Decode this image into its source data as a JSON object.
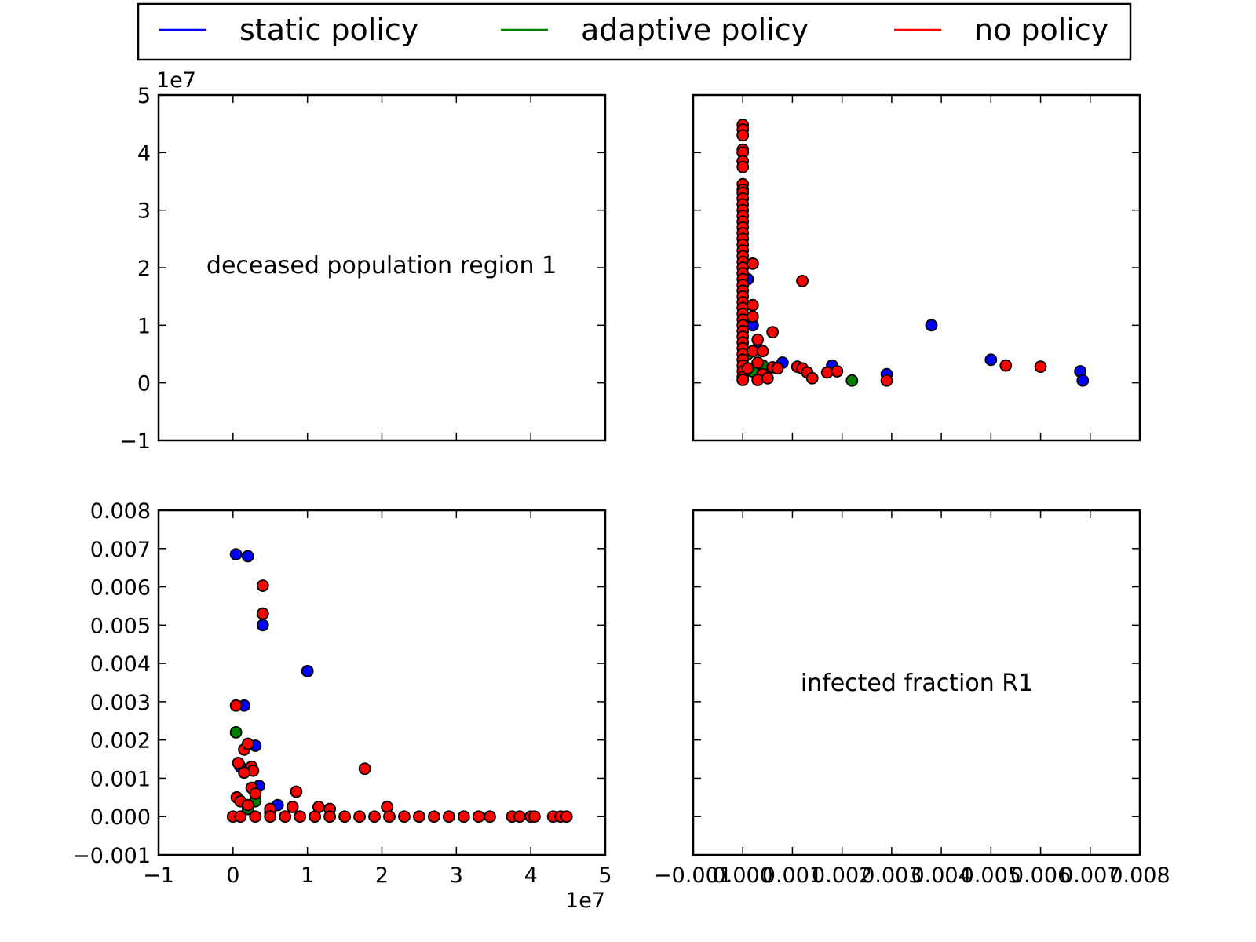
{
  "legend": {
    "placement": "top-center",
    "entries": [
      {
        "label": "static policy",
        "color": "#0000ff"
      },
      {
        "label": "adaptive policy",
        "color": "#008000"
      },
      {
        "label": "no policy",
        "color": "#ff0000"
      }
    ]
  },
  "chart_data": [
    {
      "panel": "top-left",
      "type": "scatter",
      "diagonal_label": "deceased population region 1",
      "ylim": [
        -1,
        5
      ],
      "yticks": [
        "−1",
        "0",
        "1",
        "2",
        "3",
        "4",
        "5"
      ],
      "y_offset_label": "1e7"
    },
    {
      "panel": "top-right",
      "type": "scatter",
      "xlabel_variable": "infected fraction R1",
      "ylabel_variable": "deceased population region 1",
      "xlim": [
        -0.001,
        0.008
      ],
      "ylim": [
        -1,
        5
      ],
      "y_scale": 10000000,
      "series": [
        {
          "name": "static policy",
          "color": "#0000ff",
          "points": [
            [
              0.0038,
              1.0
            ],
            [
              0.005,
              0.4
            ],
            [
              0.0068,
              0.2
            ],
            [
              0.00685,
              0.04
            ],
            [
              0.0029,
              0.15
            ],
            [
              0.0018,
              0.3
            ],
            [
              0.0008,
              0.35
            ],
            [
              0.0003,
              0.6
            ],
            [
              0.0002,
              1.0
            ],
            [
              0.0001,
              1.8
            ],
            [
              0.0002,
              0.2
            ]
          ]
        },
        {
          "name": "adaptive policy",
          "color": "#008000",
          "points": [
            [
              0.0022,
              0.04
            ],
            [
              0.0004,
              0.3
            ],
            [
              0.0002,
              0.2
            ],
            [
              0.0001,
              0.5
            ]
          ]
        },
        {
          "name": "no policy",
          "color": "#ff0000",
          "points": [
            [
              0.0,
              4.48
            ],
            [
              0.0,
              4.4
            ],
            [
              0.0,
              4.3
            ],
            [
              0.0,
              4.05
            ],
            [
              0.0,
              4.0
            ],
            [
              0.0,
              3.85
            ],
            [
              0.0,
              3.75
            ],
            [
              0.0,
              3.45
            ],
            [
              0.0,
              3.35
            ],
            [
              0.0,
              3.3
            ],
            [
              0.0,
              3.2
            ],
            [
              0.0,
              3.1
            ],
            [
              0.0,
              3.0
            ],
            [
              0.0,
              2.9
            ],
            [
              0.0,
              2.8
            ],
            [
              0.0,
              2.7
            ],
            [
              0.0,
              2.6
            ],
            [
              0.0,
              2.5
            ],
            [
              0.0,
              2.4
            ],
            [
              0.0,
              2.3
            ],
            [
              0.0,
              2.2
            ],
            [
              0.0,
              2.1
            ],
            [
              0.0,
              2.0
            ],
            [
              0.0,
              1.9
            ],
            [
              0.0,
              1.8
            ],
            [
              0.0,
              1.7
            ],
            [
              0.0,
              1.6
            ],
            [
              0.0,
              1.5
            ],
            [
              0.0,
              1.4
            ],
            [
              0.0,
              1.3
            ],
            [
              0.0,
              1.2
            ],
            [
              0.0,
              1.1
            ],
            [
              0.0,
              1.0
            ],
            [
              0.0,
              0.9
            ],
            [
              0.0,
              0.8
            ],
            [
              0.0,
              0.7
            ],
            [
              0.0,
              0.6
            ],
            [
              0.0,
              0.5
            ],
            [
              0.0,
              0.4
            ],
            [
              0.0,
              0.3
            ],
            [
              0.0,
              0.2
            ],
            [
              0.0,
              0.1
            ],
            [
              0.0,
              0.05
            ],
            [
              0.0002,
              2.07
            ],
            [
              0.0002,
              1.35
            ],
            [
              0.0002,
              1.15
            ],
            [
              0.0002,
              0.55
            ],
            [
              0.0003,
              0.75
            ],
            [
              0.0003,
              0.35
            ],
            [
              0.0004,
              0.15
            ],
            [
              0.0004,
              0.55
            ],
            [
              0.0006,
              0.88
            ],
            [
              0.0006,
              0.27
            ],
            [
              0.0007,
              0.25
            ],
            [
              0.0012,
              1.77
            ],
            [
              0.0011,
              0.28
            ],
            [
              0.0012,
              0.25
            ],
            [
              0.0013,
              0.18
            ],
            [
              0.0014,
              0.08
            ],
            [
              0.0017,
              0.18
            ],
            [
              0.0019,
              0.2
            ],
            [
              0.0029,
              0.04
            ],
            [
              0.0053,
              0.3
            ],
            [
              0.006,
              0.28
            ],
            [
              0.0001,
              0.25
            ],
            [
              0.0003,
              0.05
            ],
            [
              0.0005,
              0.08
            ]
          ]
        }
      ]
    },
    {
      "panel": "bottom-left",
      "type": "scatter",
      "xlabel_variable": "deceased population region 1",
      "ylabel_variable": "infected fraction R1",
      "xlim": [
        -1,
        5
      ],
      "ylim": [
        -0.001,
        0.008
      ],
      "x_scale": 10000000,
      "xticks": [
        "−1",
        "0",
        "1",
        "2",
        "3",
        "4",
        "5"
      ],
      "yticks": [
        "−0.001",
        "0.000",
        "0.001",
        "0.002",
        "0.003",
        "0.004",
        "0.005",
        "0.006",
        "0.007",
        "0.008"
      ],
      "x_offset_label": "1e7",
      "series": [
        {
          "name": "static policy",
          "color": "#0000ff",
          "points": [
            [
              1.0,
              0.0038
            ],
            [
              0.4,
              0.005
            ],
            [
              0.2,
              0.0068
            ],
            [
              0.04,
              0.00685
            ],
            [
              0.15,
              0.0029
            ],
            [
              0.3,
              0.00185
            ],
            [
              0.35,
              0.0008
            ],
            [
              0.6,
              0.0003
            ],
            [
              0.1,
              0.0013
            ],
            [
              0.2,
              0.0002
            ]
          ]
        },
        {
          "name": "adaptive policy",
          "color": "#008000",
          "points": [
            [
              0.04,
              0.0022
            ],
            [
              0.3,
              0.0004
            ],
            [
              0.2,
              0.0002
            ],
            [
              0.5,
              0.0001
            ]
          ]
        },
        {
          "name": "no policy",
          "color": "#ff0000",
          "points": [
            [
              0.4,
              0.00603
            ],
            [
              0.4,
              0.0053
            ],
            [
              0.04,
              0.0029
            ],
            [
              0.07,
              0.0014
            ],
            [
              0.15,
              0.00175
            ],
            [
              0.2,
              0.0019
            ],
            [
              0.25,
              0.0013
            ],
            [
              0.27,
              0.0012
            ],
            [
              0.15,
              0.00115
            ],
            [
              0.25,
              0.00075
            ],
            [
              0.3,
              0.0006
            ],
            [
              0.05,
              0.0005
            ],
            [
              0.1,
              0.0004
            ],
            [
              0.2,
              0.0003
            ],
            [
              0.85,
              0.00065
            ],
            [
              1.77,
              0.00125
            ],
            [
              2.07,
              0.00025
            ],
            [
              0.5,
              0.0002
            ],
            [
              0.8,
              0.00025
            ],
            [
              1.15,
              0.00025
            ],
            [
              1.3,
              0.0002
            ],
            [
              0.0,
              0.0
            ],
            [
              0.1,
              0.0
            ],
            [
              0.3,
              0.0
            ],
            [
              0.5,
              0.0
            ],
            [
              0.7,
              0.0
            ],
            [
              0.9,
              0.0
            ],
            [
              1.1,
              0.0
            ],
            [
              1.3,
              0.0
            ],
            [
              1.5,
              0.0
            ],
            [
              1.7,
              0.0
            ],
            [
              1.9,
              0.0
            ],
            [
              2.1,
              0.0
            ],
            [
              2.3,
              0.0
            ],
            [
              2.5,
              0.0
            ],
            [
              2.7,
              0.0
            ],
            [
              2.9,
              0.0
            ],
            [
              3.1,
              0.0
            ],
            [
              3.3,
              0.0
            ],
            [
              3.45,
              0.0
            ],
            [
              3.75,
              0.0
            ],
            [
              3.85,
              0.0
            ],
            [
              4.0,
              0.0
            ],
            [
              4.05,
              0.0
            ],
            [
              4.3,
              0.0
            ],
            [
              4.4,
              0.0
            ],
            [
              4.48,
              0.0
            ]
          ]
        }
      ]
    },
    {
      "panel": "bottom-right",
      "type": "scatter",
      "diagonal_label": "infected fraction R1",
      "xlim": [
        -0.001,
        0.008
      ],
      "xticks": [
        "−0.001",
        "0.000",
        "0.001",
        "0.002",
        "0.003",
        "0.004",
        "0.005",
        "0.006",
        "0.007",
        "0.008"
      ]
    }
  ]
}
